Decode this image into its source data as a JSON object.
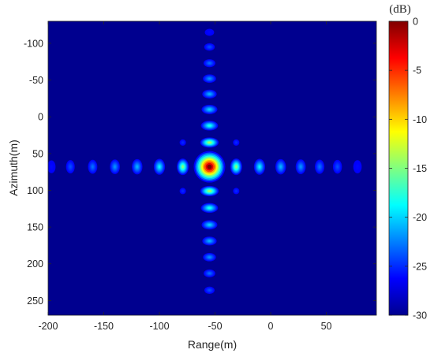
{
  "chart_data": {
    "type": "heatmap",
    "xlabel": "Range(m)",
    "ylabel": "Azimuth(m)",
    "colorbar_unit": "(dB)",
    "xlim": [
      -200,
      95
    ],
    "ylim": [
      270,
      -130
    ],
    "xticks": [
      -200,
      -150,
      -100,
      -50,
      0,
      50
    ],
    "yticks": [
      -100,
      -50,
      0,
      50,
      100,
      150,
      200,
      250
    ],
    "colorbar_ticks": [
      0,
      -5,
      -10,
      -15,
      -20,
      -25,
      -30
    ],
    "clim": [
      -30,
      0
    ],
    "colormap": "jet",
    "background_value_db": -30,
    "peak": {
      "range_m": -55,
      "azimuth_m": 68,
      "value_db": 0
    },
    "range_sidelobes": [
      {
        "range_m": -31,
        "value_db": -15
      },
      {
        "range_m": -79,
        "value_db": -15
      },
      {
        "range_m": -10,
        "value_db": -19
      },
      {
        "range_m": -100,
        "value_db": -19
      },
      {
        "range_m": 9,
        "value_db": -21
      },
      {
        "range_m": -120,
        "value_db": -21
      },
      {
        "range_m": 27,
        "value_db": -22
      },
      {
        "range_m": -140,
        "value_db": -22
      },
      {
        "range_m": 44,
        "value_db": -23
      },
      {
        "range_m": -160,
        "value_db": -23
      },
      {
        "range_m": 60,
        "value_db": -24
      },
      {
        "range_m": -180,
        "value_db": -24
      },
      {
        "range_m": 78,
        "value_db": -26
      },
      {
        "range_m": -197,
        "value_db": -26
      }
    ],
    "azimuth_sidelobes": [
      {
        "azimuth_m": 35,
        "value_db": -14
      },
      {
        "azimuth_m": 101,
        "value_db": -14
      },
      {
        "azimuth_m": 12,
        "value_db": -18
      },
      {
        "azimuth_m": 124,
        "value_db": -18
      },
      {
        "azimuth_m": -10,
        "value_db": -20
      },
      {
        "azimuth_m": 147,
        "value_db": -20
      },
      {
        "azimuth_m": -31,
        "value_db": -21
      },
      {
        "azimuth_m": 169,
        "value_db": -21
      },
      {
        "azimuth_m": -52,
        "value_db": -22
      },
      {
        "azimuth_m": 191,
        "value_db": -22
      },
      {
        "azimuth_m": -73,
        "value_db": -23
      },
      {
        "azimuth_m": 213,
        "value_db": -23
      },
      {
        "azimuth_m": -95,
        "value_db": -24
      },
      {
        "azimuth_m": 236,
        "value_db": -24
      },
      {
        "azimuth_m": -115,
        "value_db": -26
      }
    ]
  }
}
